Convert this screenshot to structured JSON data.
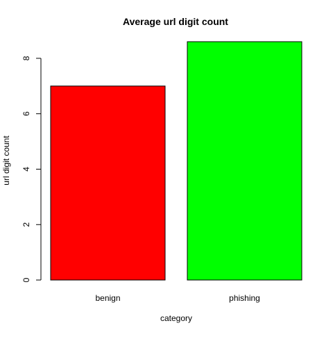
{
  "chart_data": {
    "type": "bar",
    "title": "Average url digit count",
    "xlabel": "category",
    "ylabel": "url digit count",
    "categories": [
      "benign",
      "phishing"
    ],
    "values": [
      7.0,
      8.6
    ],
    "colors": [
      "#ff0000",
      "#00ff00"
    ],
    "ylim": [
      0,
      8.6
    ],
    "yticks": [
      0,
      2,
      4,
      6,
      8
    ],
    "ytick_labels": [
      "0",
      "2",
      "4",
      "6",
      "8"
    ],
    "grid": false,
    "legend": "none",
    "bar_outline_color": "#000000"
  }
}
